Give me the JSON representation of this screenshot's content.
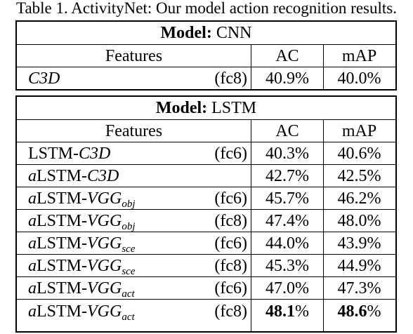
{
  "caption": "Table 1. ActivityNet: Our model action recognition results.",
  "cnn": {
    "model_label": "Model:",
    "model_name": "CNN",
    "headers": {
      "features": "Features",
      "ac": "AC",
      "map": "mAP"
    },
    "rows": [
      {
        "prefix": "",
        "base": "",
        "math": "C3D",
        "sub": "",
        "layer": "(fc8)",
        "ac": "40.9%",
        "map": "40.0%"
      }
    ]
  },
  "lstm": {
    "model_label": "Model:",
    "model_name": "LSTM",
    "headers": {
      "features": "Features",
      "ac": "AC",
      "map": "mAP"
    },
    "rows": [
      {
        "prefix": "",
        "base": "LSTM-",
        "math": "C3D",
        "sub": "",
        "layer": "(fc6)",
        "ac": "40.3%",
        "map": "40.6%"
      },
      {
        "prefix": "a",
        "base": "LSTM-",
        "math": "C3D",
        "sub": "",
        "layer": "",
        "ac": "42.7%",
        "map": "42.5%"
      },
      {
        "prefix": "a",
        "base": "LSTM-",
        "math": "VGG",
        "sub": "obj",
        "layer": "(fc6)",
        "ac": "45.7%",
        "map": "46.2%"
      },
      {
        "prefix": "a",
        "base": "LSTM-",
        "math": "VGG",
        "sub": "obj",
        "layer": "(fc8)",
        "ac": "47.4%",
        "map": "48.0%"
      },
      {
        "prefix": "a",
        "base": "LSTM-",
        "math": "VGG",
        "sub": "sce",
        "layer": "(fc6)",
        "ac": "44.0%",
        "map": "43.9%"
      },
      {
        "prefix": "a",
        "base": "LSTM-",
        "math": "VGG",
        "sub": "sce",
        "layer": "(fc8)",
        "ac": "45.3%",
        "map": "44.9%"
      },
      {
        "prefix": "a",
        "base": "LSTM-",
        "math": "VGG",
        "sub": "act",
        "layer": "(fc6)",
        "ac": "47.0%",
        "map": "47.3%"
      },
      {
        "prefix": "a",
        "base": "LSTM-",
        "math": "VGG",
        "sub": "act",
        "layer": "(fc8)",
        "ac_bold": "48.1",
        "ac_rest": "%",
        "map_bold": "48.6",
        "map_rest": "%"
      }
    ]
  }
}
